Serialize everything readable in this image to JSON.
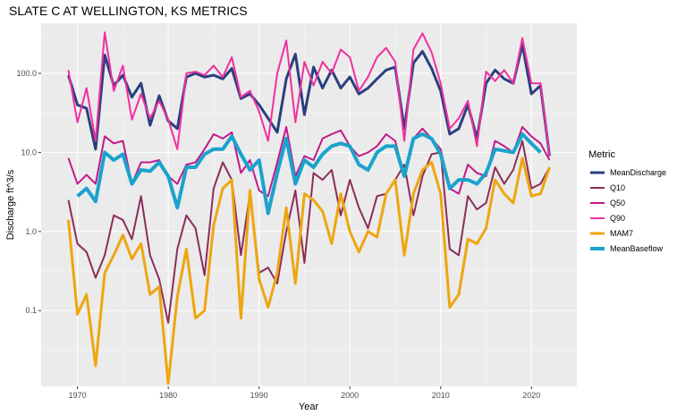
{
  "chart_data": {
    "type": "line",
    "title": "SLATE C AT WELLINGTON, KS  METRICS",
    "xlabel": "Year",
    "ylabel": "Discharge ft^3/s",
    "y_scale": "log10",
    "xlim": [
      1966,
      2025
    ],
    "ylim": [
      0.011,
      430
    ],
    "x_ticks": [
      1970,
      1980,
      1990,
      2000,
      2010,
      2020
    ],
    "x_tick_labels": [
      "1970",
      "1980",
      "1990",
      "2000",
      "2010",
      "2020"
    ],
    "y_ticks": [
      0.1,
      1,
      10,
      100
    ],
    "y_tick_labels": [
      "0.1",
      "1.0",
      "10.0",
      "100.0"
    ],
    "grid": true,
    "legend": {
      "title": "Metric",
      "position": "right"
    },
    "series": [
      {
        "name": "MeanDischarge",
        "color": "#2a3f7e",
        "width": 3,
        "x": [
          1969,
          1970,
          1971,
          1972,
          1973,
          1974,
          1975,
          1976,
          1977,
          1978,
          1979,
          1980,
          1981,
          1982,
          1983,
          1984,
          1985,
          1986,
          1987,
          1988,
          1989,
          1990,
          1991,
          1992,
          1993,
          1994,
          1995,
          1996,
          1997,
          1998,
          1999,
          2000,
          2001,
          2002,
          2003,
          2004,
          2005,
          2006,
          2007,
          2008,
          2009,
          2010,
          2011,
          2012,
          2013,
          2014,
          2015,
          2016,
          2017,
          2018,
          2019,
          2020,
          2021,
          2022
        ],
        "y": [
          95,
          40,
          36,
          11,
          170,
          70,
          95,
          50,
          75,
          22,
          52,
          25,
          20,
          90,
          100,
          90,
          95,
          85,
          115,
          48,
          55,
          40,
          27,
          18,
          85,
          175,
          30,
          120,
          65,
          110,
          65,
          90,
          55,
          65,
          85,
          110,
          120,
          20,
          135,
          190,
          115,
          60,
          17,
          20,
          40,
          15,
          75,
          110,
          85,
          75,
          230,
          55,
          70,
          9
        ]
      },
      {
        "name": "Q10",
        "color": "#8c2d5a",
        "width": 2,
        "x": [
          1969,
          1970,
          1971,
          1972,
          1973,
          1974,
          1975,
          1976,
          1977,
          1978,
          1979,
          1980,
          1981,
          1982,
          1983,
          1984,
          1985,
          1986,
          1987,
          1988,
          1989,
          1990,
          1991,
          1992,
          1993,
          1994,
          1995,
          1996,
          1997,
          1998,
          1999,
          2000,
          2001,
          2002,
          2003,
          2004,
          2005,
          2006,
          2007,
          2008,
          2009,
          2010,
          2011,
          2012,
          2013,
          2014,
          2015,
          2016,
          2017,
          2018,
          2019,
          2020,
          2021,
          2022
        ],
        "y": [
          2.5,
          0.7,
          0.55,
          0.26,
          0.5,
          1.6,
          1.4,
          0.8,
          2.8,
          0.5,
          0.25,
          0.07,
          0.6,
          1.6,
          1.1,
          0.28,
          3.5,
          7.5,
          4.5,
          0.5,
          3.0,
          0.3,
          0.35,
          0.22,
          1.0,
          3.3,
          0.4,
          5.5,
          4.5,
          6.0,
          1.6,
          4.5,
          2.0,
          1.1,
          2.8,
          3.0,
          4.5,
          7.0,
          1.6,
          5.0,
          9.5,
          10.0,
          0.6,
          0.5,
          2.8,
          1.9,
          2.3,
          6.5,
          4.0,
          6.0,
          14.0,
          3.5,
          4.0,
          6.5
        ]
      },
      {
        "name": "Q50",
        "color": "#c2198c",
        "width": 2,
        "x": [
          1969,
          1970,
          1971,
          1972,
          1973,
          1974,
          1975,
          1976,
          1977,
          1978,
          1979,
          1980,
          1981,
          1982,
          1983,
          1984,
          1985,
          1986,
          1987,
          1988,
          1989,
          1990,
          1991,
          1992,
          1993,
          1994,
          1995,
          1996,
          1997,
          1998,
          1999,
          2000,
          2001,
          2002,
          2003,
          2004,
          2005,
          2006,
          2007,
          2008,
          2009,
          2010,
          2011,
          2012,
          2013,
          2014,
          2015,
          2016,
          2017,
          2018,
          2019,
          2020,
          2021,
          2022
        ],
        "y": [
          8.5,
          4.0,
          5.2,
          4.0,
          16,
          13,
          14,
          4.0,
          7.5,
          7.5,
          8.0,
          5.0,
          4.0,
          7.0,
          7.5,
          11,
          17,
          15,
          18,
          5.5,
          8.0,
          3.3,
          2.8,
          7.5,
          21,
          5.0,
          9.0,
          8.0,
          15,
          17,
          19,
          12,
          9.0,
          10,
          12,
          17,
          14,
          5.0,
          15,
          20,
          15,
          11,
          3.5,
          3.0,
          7.0,
          5.5,
          5.0,
          14,
          12,
          10,
          21,
          16,
          13,
          8.0
        ]
      },
      {
        "name": "Q90",
        "color": "#f030a0",
        "width": 2,
        "x": [
          1969,
          1970,
          1971,
          1972,
          1973,
          1974,
          1975,
          1976,
          1977,
          1978,
          1979,
          1980,
          1981,
          1982,
          1983,
          1984,
          1985,
          1986,
          1987,
          1988,
          1989,
          1990,
          1991,
          1992,
          1993,
          1994,
          1995,
          1996,
          1997,
          1998,
          1999,
          2000,
          2001,
          2002,
          2003,
          2004,
          2005,
          2006,
          2007,
          2008,
          2009,
          2010,
          2011,
          2012,
          2013,
          2014,
          2015,
          2016,
          2017,
          2018,
          2019,
          2020,
          2021,
          2022
        ],
        "y": [
          110,
          24,
          65,
          14,
          330,
          60,
          125,
          26,
          55,
          27,
          45,
          26,
          11,
          100,
          105,
          95,
          125,
          90,
          160,
          50,
          60,
          33,
          14,
          100,
          260,
          24,
          140,
          70,
          140,
          100,
          200,
          160,
          60,
          90,
          160,
          210,
          140,
          14,
          200,
          320,
          185,
          75,
          20,
          27,
          45,
          12,
          105,
          80,
          110,
          75,
          280,
          75,
          75,
          9
        ]
      },
      {
        "name": "MAM7",
        "color": "#eea60f",
        "width": 3,
        "x": [
          1969,
          1970,
          1971,
          1972,
          1973,
          1974,
          1975,
          1976,
          1977,
          1978,
          1979,
          1980,
          1981,
          1982,
          1983,
          1984,
          1985,
          1986,
          1987,
          1988,
          1989,
          1990,
          1991,
          1992,
          1993,
          1994,
          1995,
          1996,
          1997,
          1998,
          1999,
          2000,
          2001,
          2002,
          2003,
          2004,
          2005,
          2006,
          2007,
          2008,
          2009,
          2010,
          2011,
          2012,
          2013,
          2014,
          2015,
          2016,
          2017,
          2018,
          2019,
          2020,
          2021,
          2022
        ],
        "y": [
          1.4,
          0.09,
          0.16,
          0.02,
          0.3,
          0.5,
          0.9,
          0.45,
          0.7,
          0.16,
          0.2,
          0.012,
          0.15,
          0.6,
          0.08,
          0.1,
          1.2,
          3.5,
          4.5,
          0.08,
          3.3,
          0.25,
          0.11,
          0.3,
          2.0,
          0.22,
          3.0,
          2.5,
          1.8,
          0.7,
          3.0,
          1.0,
          0.55,
          1.0,
          0.85,
          3.0,
          4.5,
          0.5,
          3.0,
          6.0,
          7.5,
          3.0,
          0.11,
          0.16,
          0.8,
          0.7,
          1.1,
          4.5,
          3.0,
          2.3,
          8.5,
          2.8,
          3.0,
          6.5
        ]
      },
      {
        "name": "MeanBaseflow",
        "color": "#1aa3cc",
        "width": 4,
        "x": [
          1970,
          1971,
          1972,
          1973,
          1974,
          1975,
          1976,
          1977,
          1978,
          1979,
          1980,
          1981,
          1982,
          1983,
          1984,
          1985,
          1986,
          1987,
          1988,
          1989,
          1990,
          1991,
          1992,
          1993,
          1994,
          1995,
          1996,
          1997,
          1998,
          1999,
          2000,
          2001,
          2002,
          2003,
          2004,
          2005,
          2006,
          2007,
          2008,
          2009,
          2010,
          2011,
          2012,
          2013,
          2014,
          2015,
          2016,
          2018,
          2019,
          2020,
          2021
        ],
        "y": [
          2.8,
          3.5,
          2.4,
          10,
          8.0,
          9.5,
          4.0,
          6.0,
          5.8,
          7.5,
          5.0,
          2.0,
          6.5,
          6.5,
          9.5,
          11,
          11,
          16,
          9.5,
          6.0,
          8.0,
          1.7,
          5.5,
          15,
          4.0,
          8.0,
          6.5,
          9.5,
          12,
          13,
          12,
          7.0,
          6.0,
          10,
          12,
          12,
          5.0,
          15,
          17,
          15,
          9.5,
          3.5,
          4.5,
          4.5,
          4.0,
          5.5,
          11,
          10,
          17,
          13,
          10
        ]
      }
    ]
  }
}
